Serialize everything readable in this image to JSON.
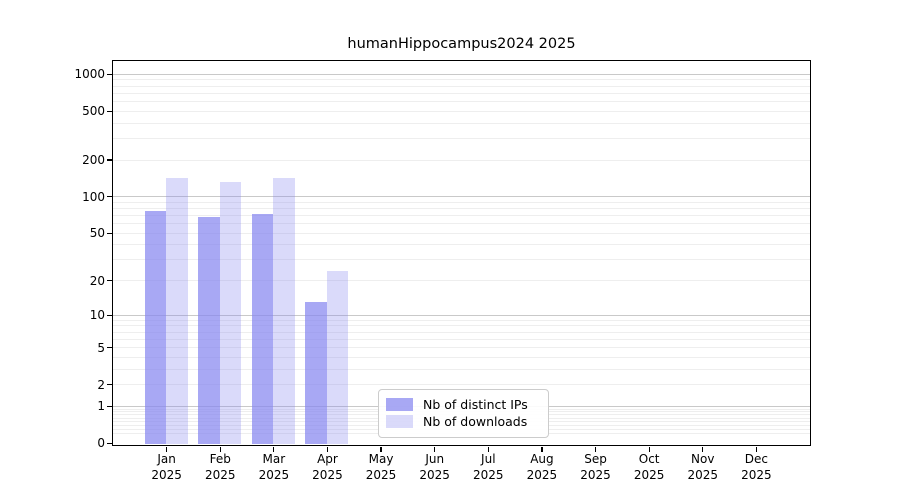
{
  "chart_data": {
    "type": "bar",
    "title": "humanHippocampus2024 2025",
    "categories": [
      {
        "month": "Jan",
        "year": "2025"
      },
      {
        "month": "Feb",
        "year": "2025"
      },
      {
        "month": "Mar",
        "year": "2025"
      },
      {
        "month": "Apr",
        "year": "2025"
      },
      {
        "month": "May",
        "year": "2025"
      },
      {
        "month": "Jun",
        "year": "2025"
      },
      {
        "month": "Jul",
        "year": "2025"
      },
      {
        "month": "Aug",
        "year": "2025"
      },
      {
        "month": "Sep",
        "year": "2025"
      },
      {
        "month": "Oct",
        "year": "2025"
      },
      {
        "month": "Nov",
        "year": "2025"
      },
      {
        "month": "Dec",
        "year": "2025"
      }
    ],
    "series": [
      {
        "name": "Nb of distinct IPs",
        "color": "rgba(134,134,240,0.72)",
        "values": [
          76,
          67,
          71,
          13,
          0,
          0,
          0,
          0,
          0,
          0,
          0,
          0
        ]
      },
      {
        "name": "Nb of downloads",
        "color": "rgba(134,134,240,0.30)",
        "values": [
          140,
          130,
          140,
          24,
          0,
          0,
          0,
          0,
          0,
          0,
          0,
          0
        ]
      }
    ],
    "yscale": "log1p",
    "yticks": [
      0,
      1,
      2,
      5,
      10,
      20,
      50,
      100,
      200,
      500,
      1000
    ],
    "ylim": [
      0,
      1280
    ],
    "xlabel": "",
    "ylabel": "",
    "grid": "on",
    "legend_position": "lower center"
  }
}
